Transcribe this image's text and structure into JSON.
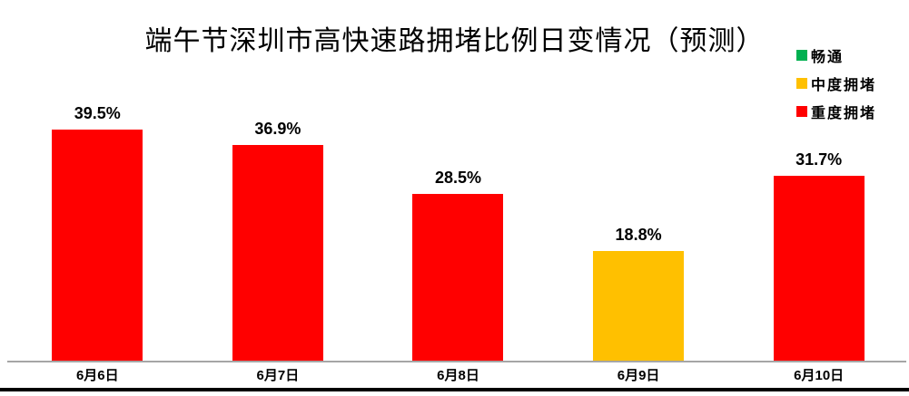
{
  "chart_data": {
    "type": "bar",
    "title": "端午节深圳市高快速路拥堵比例日变情况（预测）",
    "categories": [
      "6月6日",
      "6月7日",
      "6月8日",
      "6月9日",
      "6月10日"
    ],
    "values": [
      39.5,
      36.9,
      28.5,
      18.8,
      31.7
    ],
    "value_labels": [
      "39.5%",
      "36.9%",
      "28.5%",
      "18.8%",
      "31.7%"
    ],
    "bar_classes": [
      "重度拥堵",
      "重度拥堵",
      "重度拥堵",
      "中度拥堵",
      "重度拥堵"
    ],
    "legend": [
      {
        "label": "畅通",
        "color": "#00B050"
      },
      {
        "label": "中度拥堵",
        "color": "#FFC000"
      },
      {
        "label": "重度拥堵",
        "color": "#FF0000"
      }
    ],
    "xlabel": "",
    "ylabel": "",
    "ylim": [
      0,
      46.2
    ],
    "grid": false,
    "legend_position": "top-right",
    "axis_line_color": "#A6A6A6",
    "bottom_rule_color": "#000000"
  }
}
